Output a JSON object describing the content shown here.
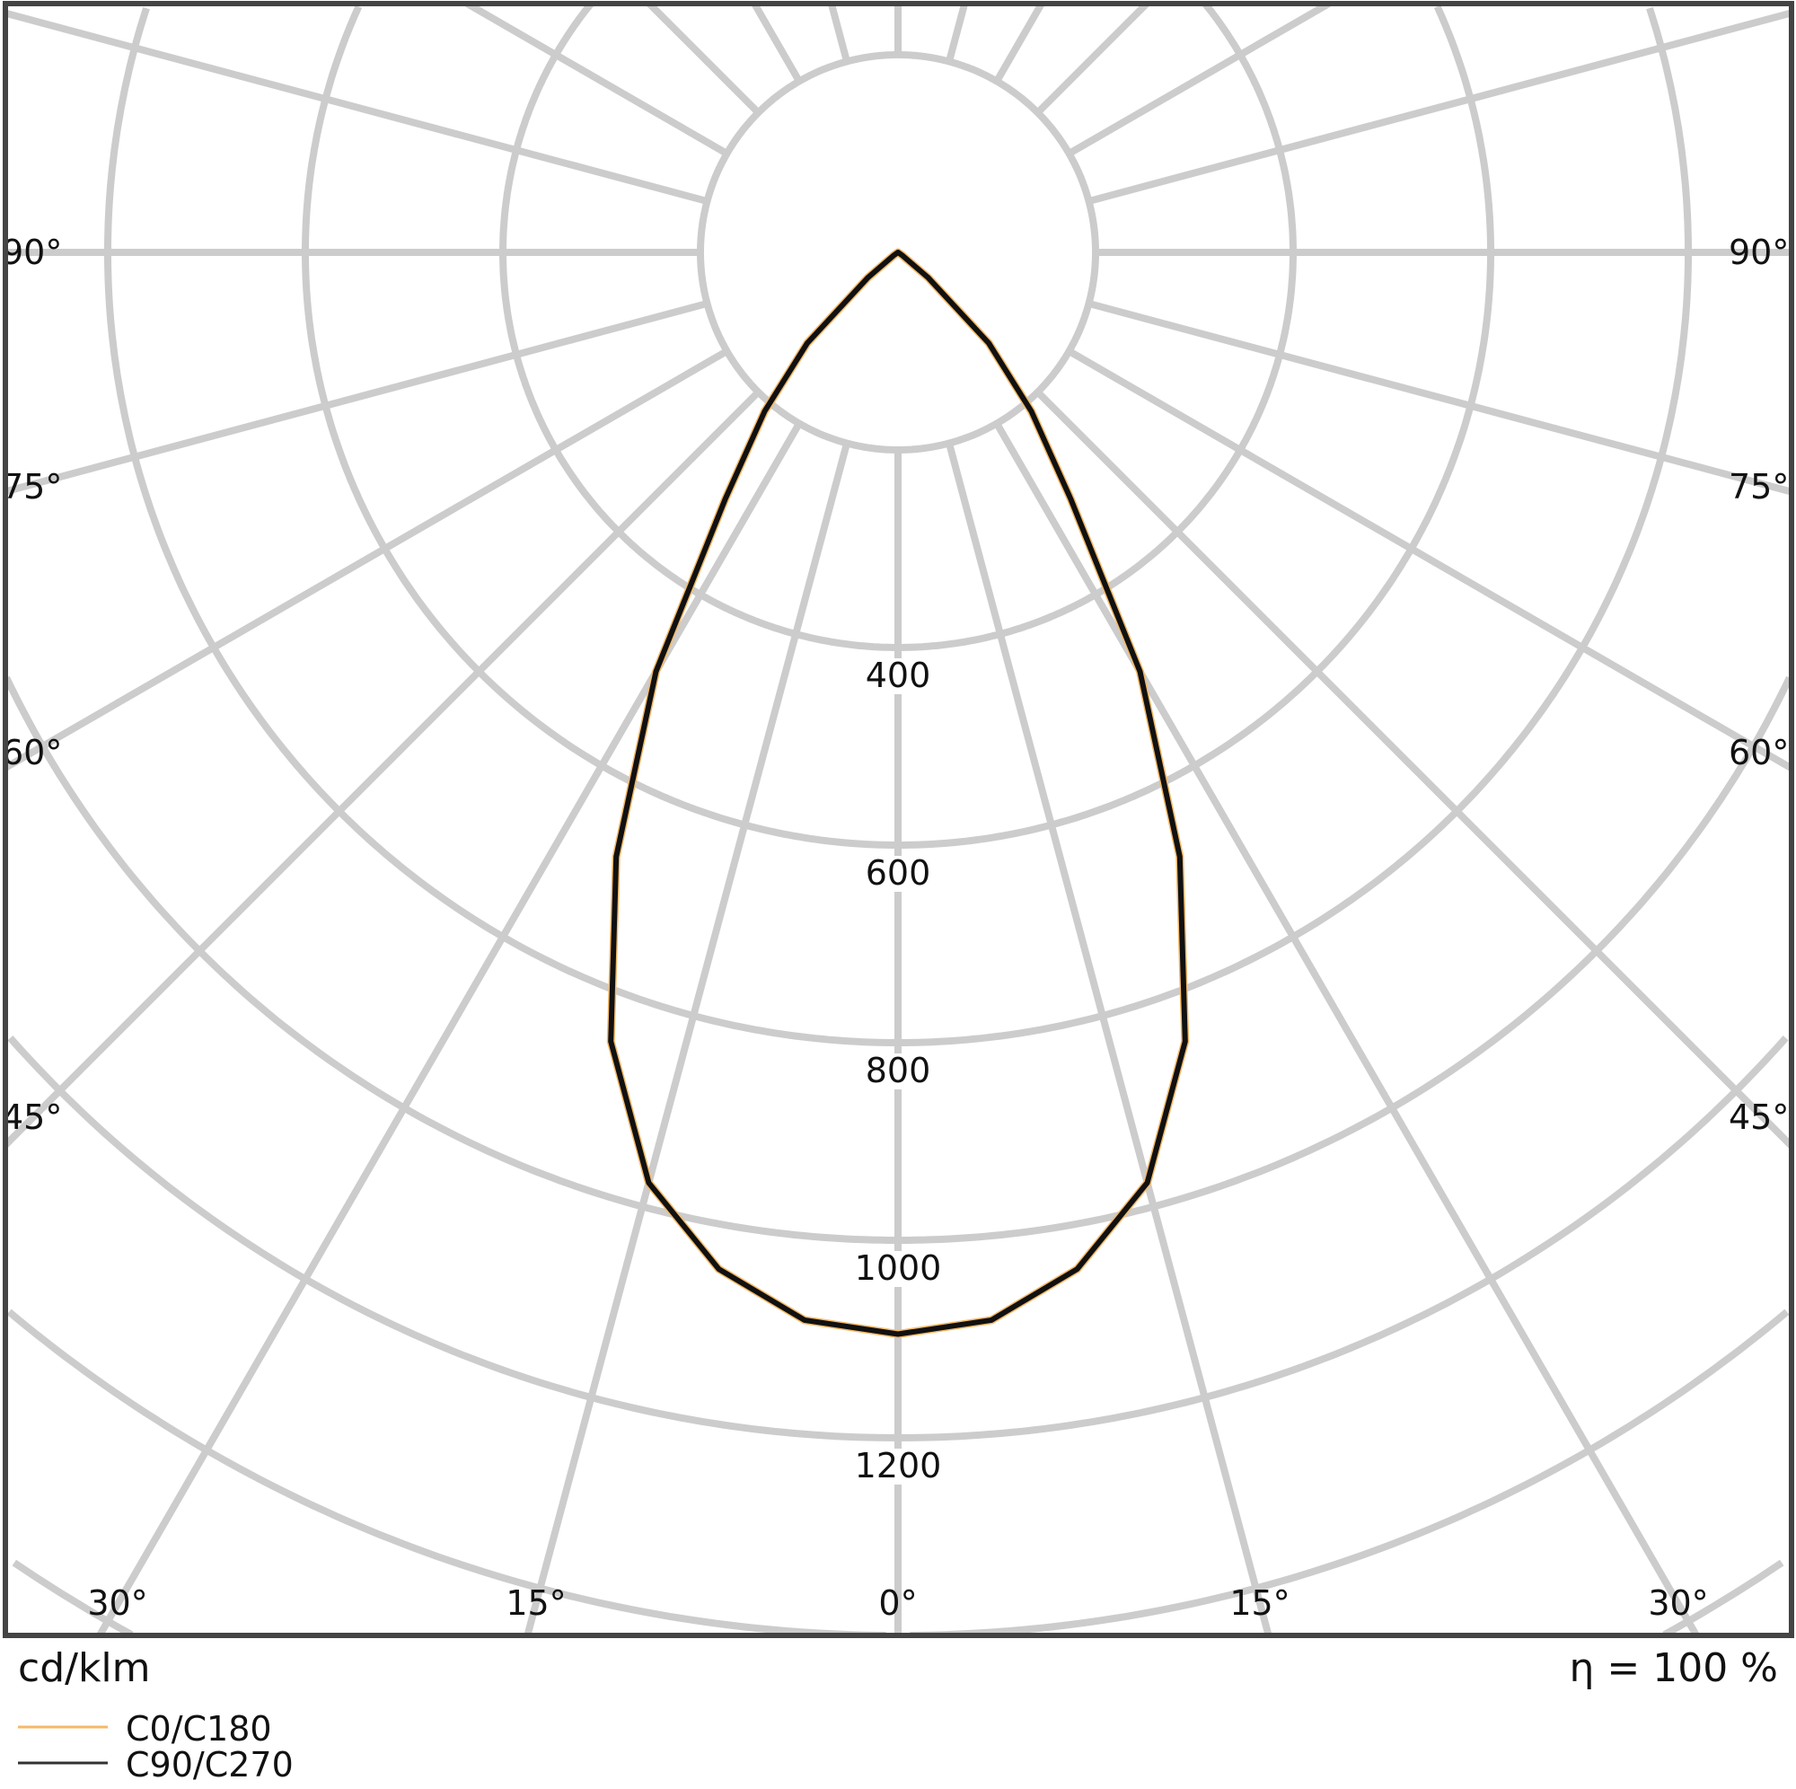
{
  "chart_data": {
    "type": "polar",
    "unit_label": "cd/klm",
    "efficiency_label": "η = 100 %",
    "radial_ticks": [
      400,
      600,
      800,
      1000,
      1200
    ],
    "radial_rings": [
      200,
      400,
      600,
      800,
      1000,
      1200,
      1400,
      1600,
      1800,
      2000,
      2200,
      2400
    ],
    "angle_spoke_step_deg": 15,
    "angle_labels": {
      "left": [
        "90°",
        "75°",
        "60°",
        "45°"
      ],
      "bottom": [
        "30°",
        "15°",
        "0°",
        "15°",
        "30°"
      ],
      "right": [
        "90°",
        "75°",
        "60°",
        "45°"
      ]
    },
    "grid": true,
    "legend_placement": "bottom-left",
    "series": [
      {
        "name": "C0/C180",
        "color": "#f5b967",
        "gamma": [
          0,
          5,
          10,
          15,
          20,
          25,
          30,
          35,
          40,
          45,
          50,
          55,
          60
        ],
        "values": [
          1095,
          1085,
          1045,
          975,
          850,
          675,
          490,
          305,
          210,
          130,
          40,
          5,
          0
        ]
      },
      {
        "name": "C90/C270",
        "color": "#111111",
        "gamma": [
          0,
          5,
          10,
          15,
          20,
          25,
          30,
          35,
          40,
          45,
          50,
          55,
          60
        ],
        "values": [
          1095,
          1085,
          1045,
          975,
          850,
          675,
          490,
          305,
          210,
          130,
          40,
          5,
          0
        ]
      }
    ]
  },
  "colors": {
    "grid": "#cccccc",
    "frame": "#444444"
  }
}
